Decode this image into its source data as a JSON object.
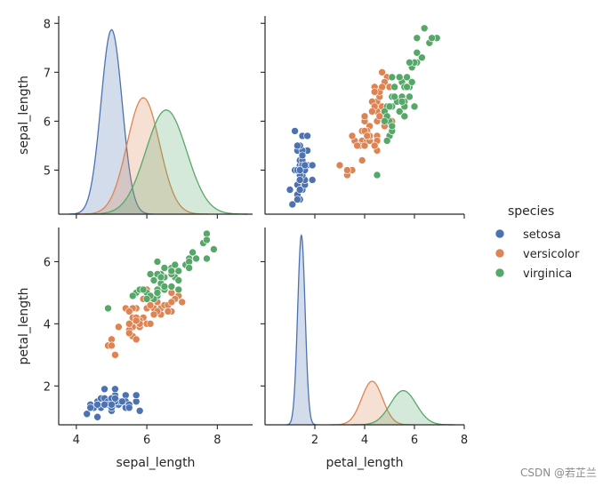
{
  "chart_data": {
    "type": "pairplot",
    "title": "",
    "variables": [
      "sepal_length",
      "petal_length"
    ],
    "hue": "species",
    "legend": {
      "title": "species",
      "placement": "right-center",
      "entries": [
        {
          "label": "setosa",
          "color": "#4c72b0"
        },
        {
          "label": "versicolor",
          "color": "#dd8452"
        },
        {
          "label": "virginica",
          "color": "#55a868"
        }
      ]
    },
    "axes": {
      "sepal_length": {
        "label": "sepal_length",
        "range": [
          3.5,
          9.0
        ],
        "ticks": [
          4,
          6,
          8
        ],
        "range_y": [
          4.1,
          8.15
        ],
        "ticks_y": [
          5,
          6,
          7,
          8
        ]
      },
      "petal_length": {
        "label": "petal_length",
        "range": [
          0.0,
          8.0
        ],
        "ticks": [
          2,
          4,
          6,
          8
        ],
        "range_y": [
          0.75,
          7.1
        ],
        "ticks_y": [
          2,
          4,
          6
        ]
      }
    },
    "kde": {
      "sepal_length": {
        "setosa": {
          "mean": 5.0,
          "sd": 0.3,
          "peak_y": 7.87
        },
        "versicolor": {
          "mean": 5.9,
          "sd": 0.46,
          "peak_y": 6.48
        },
        "virginica": {
          "mean": 6.55,
          "sd": 0.58,
          "peak_y": 6.23
        }
      },
      "petal_length": {
        "setosa": {
          "mean": 1.46,
          "sd": 0.15,
          "peak_y": 6.85
        },
        "versicolor": {
          "mean": 4.3,
          "sd": 0.42,
          "peak_y": 2.15
        },
        "virginica": {
          "mean": 5.55,
          "sd": 0.52,
          "peak_y": 1.85
        }
      }
    },
    "scatter": {
      "setosa": [
        [
          5.1,
          1.4
        ],
        [
          4.9,
          1.4
        ],
        [
          4.7,
          1.3
        ],
        [
          4.6,
          1.5
        ],
        [
          5.0,
          1.4
        ],
        [
          5.4,
          1.7
        ],
        [
          4.6,
          1.4
        ],
        [
          5.0,
          1.5
        ],
        [
          4.4,
          1.4
        ],
        [
          4.9,
          1.5
        ],
        [
          5.4,
          1.5
        ],
        [
          4.8,
          1.6
        ],
        [
          4.8,
          1.4
        ],
        [
          4.3,
          1.1
        ],
        [
          5.8,
          1.2
        ],
        [
          5.7,
          1.5
        ],
        [
          5.4,
          1.3
        ],
        [
          5.1,
          1.4
        ],
        [
          5.7,
          1.7
        ],
        [
          5.1,
          1.5
        ],
        [
          5.4,
          1.7
        ],
        [
          5.1,
          1.5
        ],
        [
          4.6,
          1.0
        ],
        [
          5.1,
          1.7
        ],
        [
          4.8,
          1.9
        ],
        [
          5.0,
          1.6
        ],
        [
          5.0,
          1.6
        ],
        [
          5.2,
          1.5
        ],
        [
          5.2,
          1.4
        ],
        [
          4.7,
          1.6
        ],
        [
          4.8,
          1.6
        ],
        [
          5.4,
          1.5
        ],
        [
          5.2,
          1.5
        ],
        [
          5.5,
          1.4
        ],
        [
          4.9,
          1.5
        ],
        [
          5.0,
          1.2
        ],
        [
          5.5,
          1.3
        ],
        [
          4.9,
          1.4
        ],
        [
          4.4,
          1.3
        ],
        [
          5.1,
          1.5
        ],
        [
          5.0,
          1.3
        ],
        [
          4.5,
          1.3
        ],
        [
          4.4,
          1.3
        ],
        [
          5.0,
          1.6
        ],
        [
          5.1,
          1.9
        ],
        [
          4.8,
          1.4
        ],
        [
          5.1,
          1.6
        ],
        [
          4.6,
          1.4
        ],
        [
          5.3,
          1.5
        ],
        [
          5.0,
          1.4
        ]
      ],
      "versicolor": [
        [
          7.0,
          4.7
        ],
        [
          6.4,
          4.5
        ],
        [
          6.9,
          4.9
        ],
        [
          5.5,
          4.0
        ],
        [
          6.5,
          4.6
        ],
        [
          5.7,
          4.5
        ],
        [
          6.3,
          4.7
        ],
        [
          4.9,
          3.3
        ],
        [
          6.6,
          4.6
        ],
        [
          5.2,
          3.9
        ],
        [
          5.0,
          3.5
        ],
        [
          5.9,
          4.2
        ],
        [
          6.0,
          4.0
        ],
        [
          6.1,
          4.7
        ],
        [
          5.6,
          3.6
        ],
        [
          6.7,
          4.4
        ],
        [
          5.6,
          4.5
        ],
        [
          5.8,
          4.1
        ],
        [
          6.2,
          4.5
        ],
        [
          5.6,
          3.9
        ],
        [
          5.9,
          4.8
        ],
        [
          6.1,
          4.0
        ],
        [
          6.3,
          4.9
        ],
        [
          6.1,
          4.7
        ],
        [
          6.4,
          4.3
        ],
        [
          6.6,
          4.4
        ],
        [
          6.8,
          4.8
        ],
        [
          6.7,
          5.0
        ],
        [
          6.0,
          4.5
        ],
        [
          5.7,
          3.5
        ],
        [
          5.5,
          3.8
        ],
        [
          5.5,
          3.7
        ],
        [
          5.8,
          3.9
        ],
        [
          6.0,
          5.1
        ],
        [
          5.4,
          4.5
        ],
        [
          6.0,
          4.5
        ],
        [
          6.7,
          4.7
        ],
        [
          6.3,
          4.4
        ],
        [
          5.6,
          4.1
        ],
        [
          5.5,
          4.0
        ],
        [
          5.5,
          4.4
        ],
        [
          6.1,
          4.6
        ],
        [
          5.8,
          4.0
        ],
        [
          5.0,
          3.3
        ],
        [
          5.6,
          4.2
        ],
        [
          5.7,
          4.2
        ],
        [
          5.7,
          4.2
        ],
        [
          6.2,
          4.3
        ],
        [
          5.1,
          3.0
        ],
        [
          5.7,
          4.1
        ]
      ],
      "virginica": [
        [
          6.3,
          6.0
        ],
        [
          5.8,
          5.1
        ],
        [
          7.1,
          5.9
        ],
        [
          6.3,
          5.6
        ],
        [
          6.5,
          5.8
        ],
        [
          7.6,
          6.6
        ],
        [
          4.9,
          4.5
        ],
        [
          7.3,
          6.3
        ],
        [
          6.7,
          5.8
        ],
        [
          7.2,
          6.1
        ],
        [
          6.5,
          5.1
        ],
        [
          6.4,
          5.3
        ],
        [
          6.8,
          5.5
        ],
        [
          5.7,
          5.0
        ],
        [
          5.8,
          5.1
        ],
        [
          6.4,
          5.3
        ],
        [
          6.5,
          5.5
        ],
        [
          7.7,
          6.7
        ],
        [
          7.7,
          6.9
        ],
        [
          6.0,
          5.0
        ],
        [
          6.9,
          5.7
        ],
        [
          5.6,
          4.9
        ],
        [
          7.7,
          6.7
        ],
        [
          6.3,
          4.9
        ],
        [
          6.7,
          5.7
        ],
        [
          7.2,
          6.0
        ],
        [
          6.2,
          4.8
        ],
        [
          6.1,
          4.9
        ],
        [
          6.4,
          5.6
        ],
        [
          7.2,
          5.8
        ],
        [
          7.4,
          6.1
        ],
        [
          7.9,
          6.4
        ],
        [
          6.4,
          5.6
        ],
        [
          6.3,
          5.1
        ],
        [
          6.1,
          5.6
        ],
        [
          7.7,
          6.1
        ],
        [
          6.3,
          5.6
        ],
        [
          6.4,
          5.5
        ],
        [
          6.0,
          4.8
        ],
        [
          6.9,
          5.4
        ],
        [
          6.7,
          5.6
        ],
        [
          6.9,
          5.1
        ],
        [
          5.8,
          5.1
        ],
        [
          6.8,
          5.9
        ],
        [
          6.7,
          5.7
        ],
        [
          6.7,
          5.2
        ],
        [
          6.3,
          5.0
        ],
        [
          6.5,
          5.2
        ],
        [
          6.2,
          5.4
        ],
        [
          5.9,
          5.1
        ]
      ]
    }
  },
  "watermark": "CSDN @若芷兰"
}
